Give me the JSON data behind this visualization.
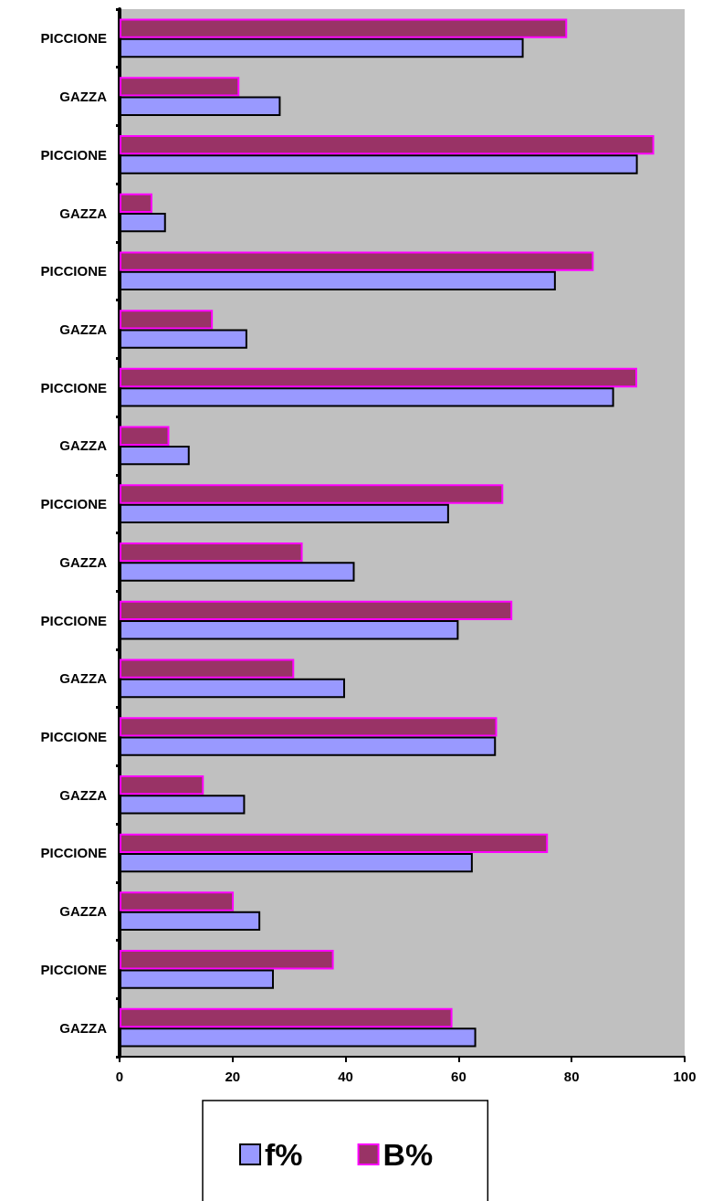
{
  "chart_data": {
    "type": "bar",
    "orientation": "horizontal",
    "categories": [
      "PICCIONE",
      "GAZZA",
      "PICCIONE",
      "GAZZA",
      "PICCIONE",
      "GAZZA",
      "PICCIONE",
      "GAZZA",
      "PICCIONE",
      "GAZZA",
      "PICCIONE",
      "GAZZA",
      "PICCIONE",
      "GAZZA",
      "PICCIONE",
      "GAZZA",
      "PICCIONE",
      "GAZZA"
    ],
    "series": [
      {
        "name": "f%",
        "color": "#9999ff",
        "values": [
          71.5,
          28.5,
          91.7,
          8.2,
          77.2,
          22.6,
          87.5,
          12.4,
          58.3,
          41.6,
          60,
          39.9,
          66.6,
          22.2,
          62.5,
          24.9,
          27.3,
          63.1
        ]
      },
      {
        "name": "B%",
        "color": "#993366",
        "values": [
          79.2,
          21.2,
          94.6,
          5.8,
          83.9,
          16.5,
          91.6,
          8.8,
          67.9,
          32.4,
          69.5,
          30.9,
          66.8,
          14.9,
          75.8,
          20.2,
          37.9,
          58.9
        ]
      }
    ],
    "xlim": [
      0,
      100
    ],
    "xticks": [
      0,
      20,
      40,
      60,
      80,
      100
    ],
    "grid": false,
    "legend": "bottom"
  }
}
